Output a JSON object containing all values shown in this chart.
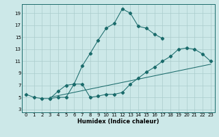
{
  "xlabel": "Humidex (Indice chaleur)",
  "bg_color": "#cce8e8",
  "line_color": "#1a6b6b",
  "grid_color": "#aacccc",
  "xlim": [
    -0.5,
    23.5
  ],
  "ylim": [
    2.5,
    20.5
  ],
  "xticks": [
    0,
    1,
    2,
    3,
    4,
    5,
    6,
    7,
    8,
    9,
    10,
    11,
    12,
    13,
    14,
    15,
    16,
    17,
    18,
    19,
    20,
    21,
    22,
    23
  ],
  "yticks": [
    3,
    5,
    7,
    9,
    11,
    13,
    15,
    17,
    19
  ],
  "line1_x": [
    0,
    1,
    2,
    3,
    4,
    5,
    6,
    7,
    8,
    9,
    10,
    11,
    12,
    13,
    14,
    15,
    16,
    17
  ],
  "line1_y": [
    5.5,
    5.0,
    4.8,
    4.8,
    6.0,
    7.0,
    7.2,
    10.2,
    12.3,
    14.5,
    16.5,
    17.3,
    19.7,
    19.0,
    16.8,
    16.5,
    15.5,
    14.8
  ],
  "line2_x": [
    3,
    4,
    5,
    6,
    7,
    8,
    9,
    10,
    11,
    12,
    13,
    14,
    15,
    16,
    17,
    18,
    19,
    20,
    21,
    22,
    23
  ],
  "line2_y": [
    4.8,
    5.0,
    5.0,
    7.2,
    7.2,
    5.0,
    5.2,
    5.5,
    5.5,
    5.8,
    7.2,
    8.2,
    9.2,
    10.0,
    11.0,
    11.8,
    13.0,
    13.2,
    13.0,
    12.2,
    11.0
  ],
  "line3_x": [
    3,
    23
  ],
  "line3_y": [
    5.0,
    10.5
  ]
}
